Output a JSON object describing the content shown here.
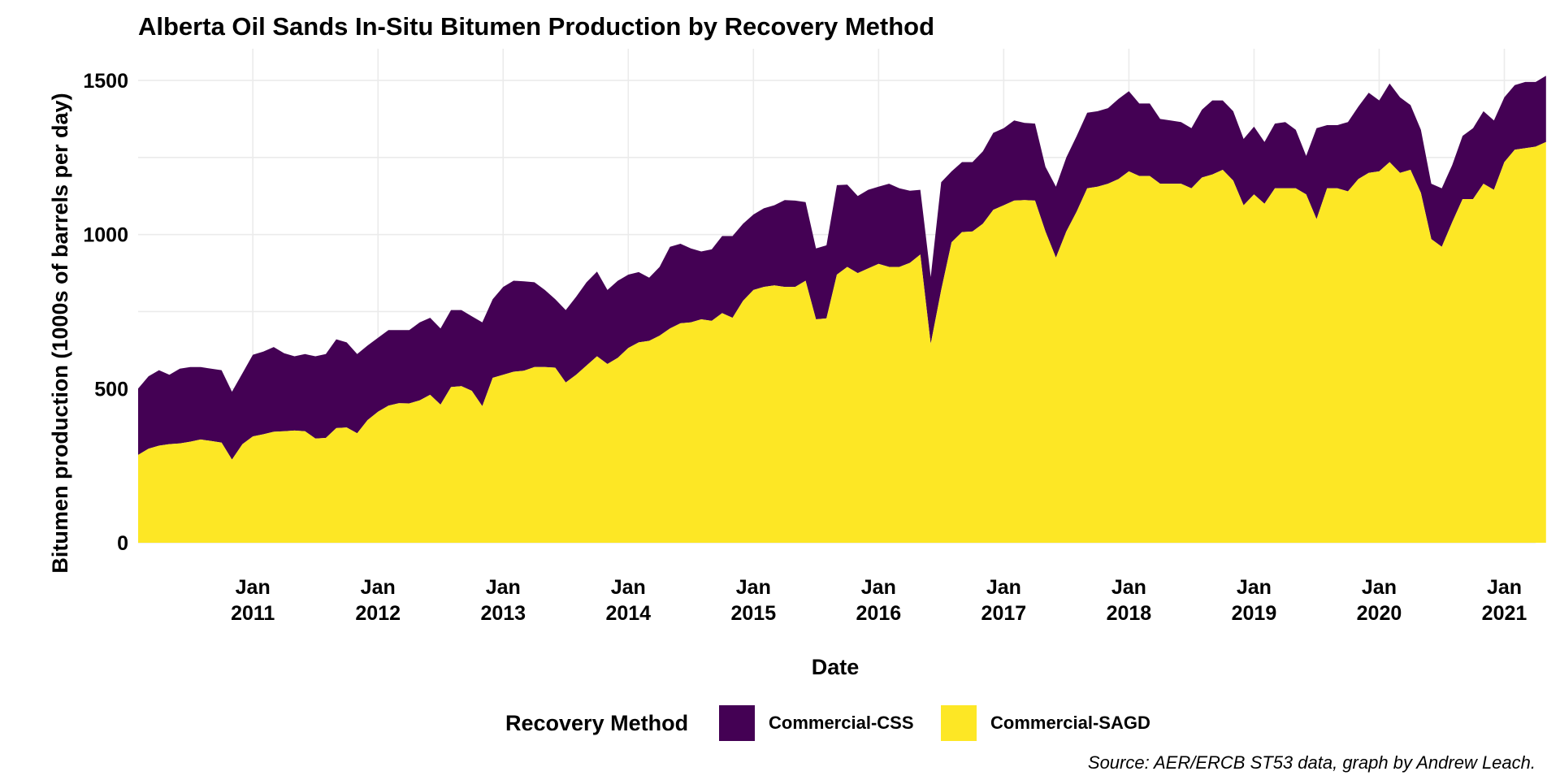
{
  "chart_data": {
    "type": "area",
    "stacked": true,
    "title": "Alberta Oil Sands In-Situ Bitumen Production by Recovery Method",
    "xlabel": "Date",
    "ylabel": "Bitumen production (1000s of barrels per day)",
    "caption": "Source: AER/ERCB ST53 data, graph by Andrew Leach.",
    "legend_title": "Recovery Method",
    "legend_position": "bottom",
    "grid": true,
    "ylim": [
      0,
      1550
    ],
    "xlim": [
      "2010-02",
      "2021-04"
    ],
    "y_ticks": [
      "0",
      "500",
      "1000",
      "1500"
    ],
    "x_ticks": [
      {
        "month": "Jan",
        "year": "2011",
        "date": "2011-01"
      },
      {
        "month": "Jan",
        "year": "2012",
        "date": "2012-01"
      },
      {
        "month": "Jan",
        "year": "2013",
        "date": "2013-01"
      },
      {
        "month": "Jan",
        "year": "2014",
        "date": "2014-01"
      },
      {
        "month": "Jan",
        "year": "2015",
        "date": "2015-01"
      },
      {
        "month": "Jan",
        "year": "2016",
        "date": "2016-01"
      },
      {
        "month": "Jan",
        "year": "2017",
        "date": "2017-01"
      },
      {
        "month": "Jan",
        "year": "2018",
        "date": "2018-01"
      },
      {
        "month": "Jan",
        "year": "2019",
        "date": "2019-01"
      },
      {
        "month": "Jan",
        "year": "2020",
        "date": "2020-01"
      },
      {
        "month": "Jan",
        "year": "2021",
        "date": "2021-01"
      }
    ],
    "series": [
      {
        "name": "Commercial-SAGD",
        "color": "#fde725",
        "points": [
          [
            "2010-02",
            285
          ],
          [
            "2010-03",
            305
          ],
          [
            "2010-04",
            315
          ],
          [
            "2010-05",
            320
          ],
          [
            "2010-06",
            322
          ],
          [
            "2010-07",
            328
          ],
          [
            "2010-08",
            335
          ],
          [
            "2010-09",
            330
          ],
          [
            "2010-10",
            325
          ],
          [
            "2010-11",
            270
          ],
          [
            "2010-12",
            320
          ],
          [
            "2011-01",
            345
          ],
          [
            "2011-02",
            352
          ],
          [
            "2011-03",
            360
          ],
          [
            "2011-04",
            362
          ],
          [
            "2011-05",
            364
          ],
          [
            "2011-06",
            362
          ],
          [
            "2011-07",
            338
          ],
          [
            "2011-08",
            340
          ],
          [
            "2011-09",
            372
          ],
          [
            "2011-10",
            374
          ],
          [
            "2011-11",
            355
          ],
          [
            "2011-12",
            398
          ],
          [
            "2012-01",
            425
          ],
          [
            "2012-02",
            445
          ],
          [
            "2012-03",
            453
          ],
          [
            "2012-04",
            452
          ],
          [
            "2012-05",
            462
          ],
          [
            "2012-06",
            480
          ],
          [
            "2012-07",
            448
          ],
          [
            "2012-08",
            505
          ],
          [
            "2012-09",
            508
          ],
          [
            "2012-10",
            493
          ],
          [
            "2012-11",
            443
          ],
          [
            "2012-12",
            535
          ],
          [
            "2013-01",
            545
          ],
          [
            "2013-02",
            555
          ],
          [
            "2013-03",
            558
          ],
          [
            "2013-04",
            570
          ],
          [
            "2013-05",
            570
          ],
          [
            "2013-06",
            568
          ],
          [
            "2013-07",
            520
          ],
          [
            "2013-08",
            545
          ],
          [
            "2013-09",
            575
          ],
          [
            "2013-10",
            605
          ],
          [
            "2013-11",
            580
          ],
          [
            "2013-12",
            600
          ],
          [
            "2014-01",
            632
          ],
          [
            "2014-02",
            650
          ],
          [
            "2014-03",
            655
          ],
          [
            "2014-04",
            672
          ],
          [
            "2014-05",
            695
          ],
          [
            "2014-06",
            712
          ],
          [
            "2014-07",
            715
          ],
          [
            "2014-08",
            725
          ],
          [
            "2014-09",
            720
          ],
          [
            "2014-10",
            745
          ],
          [
            "2014-11",
            730
          ],
          [
            "2014-12",
            785
          ],
          [
            "2015-01",
            820
          ],
          [
            "2015-02",
            830
          ],
          [
            "2015-03",
            835
          ],
          [
            "2015-04",
            830
          ],
          [
            "2015-05",
            830
          ],
          [
            "2015-06",
            850
          ],
          [
            "2015-07",
            725
          ],
          [
            "2015-08",
            728
          ],
          [
            "2015-09",
            870
          ],
          [
            "2015-10",
            895
          ],
          [
            "2015-11",
            875
          ],
          [
            "2015-12",
            890
          ],
          [
            "2016-01",
            905
          ],
          [
            "2016-02",
            895
          ],
          [
            "2016-03",
            895
          ],
          [
            "2016-04",
            908
          ],
          [
            "2016-05",
            935
          ],
          [
            "2016-06",
            645
          ],
          [
            "2016-07",
            820
          ],
          [
            "2016-08",
            975
          ],
          [
            "2016-09",
            1008
          ],
          [
            "2016-10",
            1010
          ],
          [
            "2016-11",
            1035
          ],
          [
            "2016-12",
            1080
          ],
          [
            "2017-01",
            1095
          ],
          [
            "2017-02",
            1110
          ],
          [
            "2017-03",
            1112
          ],
          [
            "2017-04",
            1110
          ],
          [
            "2017-05",
            1010
          ],
          [
            "2017-06",
            925
          ],
          [
            "2017-07",
            1010
          ],
          [
            "2017-08",
            1075
          ],
          [
            "2017-09",
            1150
          ],
          [
            "2017-10",
            1155
          ],
          [
            "2017-11",
            1165
          ],
          [
            "2017-12",
            1180
          ],
          [
            "2018-01",
            1205
          ],
          [
            "2018-02",
            1190
          ],
          [
            "2018-03",
            1190
          ],
          [
            "2018-04",
            1165
          ],
          [
            "2018-05",
            1165
          ],
          [
            "2018-06",
            1165
          ],
          [
            "2018-07",
            1150
          ],
          [
            "2018-08",
            1185
          ],
          [
            "2018-09",
            1195
          ],
          [
            "2018-10",
            1210
          ],
          [
            "2018-11",
            1175
          ],
          [
            "2018-12",
            1095
          ],
          [
            "2019-01",
            1130
          ],
          [
            "2019-02",
            1100
          ],
          [
            "2019-03",
            1150
          ],
          [
            "2019-04",
            1150
          ],
          [
            "2019-05",
            1150
          ],
          [
            "2019-06",
            1130
          ],
          [
            "2019-07",
            1050
          ],
          [
            "2019-08",
            1150
          ],
          [
            "2019-09",
            1150
          ],
          [
            "2019-10",
            1140
          ],
          [
            "2019-11",
            1180
          ],
          [
            "2019-12",
            1200
          ],
          [
            "2020-01",
            1205
          ],
          [
            "2020-02",
            1235
          ],
          [
            "2020-03",
            1200
          ],
          [
            "2020-04",
            1210
          ],
          [
            "2020-05",
            1135
          ],
          [
            "2020-06",
            985
          ],
          [
            "2020-07",
            960
          ],
          [
            "2020-08",
            1040
          ],
          [
            "2020-09",
            1115
          ],
          [
            "2020-10",
            1115
          ],
          [
            "2020-11",
            1165
          ],
          [
            "2020-12",
            1145
          ],
          [
            "2021-01",
            1235
          ],
          [
            "2021-02",
            1275
          ],
          [
            "2021-03",
            1280
          ],
          [
            "2021-04",
            1285
          ],
          [
            "2021-05",
            1300
          ]
        ]
      },
      {
        "name": "Commercial-CSS",
        "color": "#440154",
        "points": [
          [
            "2010-02",
            500
          ],
          [
            "2010-03",
            540
          ],
          [
            "2010-04",
            560
          ],
          [
            "2010-05",
            545
          ],
          [
            "2010-06",
            565
          ],
          [
            "2010-07",
            570
          ],
          [
            "2010-08",
            570
          ],
          [
            "2010-09",
            565
          ],
          [
            "2010-10",
            560
          ],
          [
            "2010-11",
            490
          ],
          [
            "2010-12",
            550
          ],
          [
            "2011-01",
            610
          ],
          [
            "2011-02",
            620
          ],
          [
            "2011-03",
            635
          ],
          [
            "2011-04",
            615
          ],
          [
            "2011-05",
            605
          ],
          [
            "2011-06",
            612
          ],
          [
            "2011-07",
            605
          ],
          [
            "2011-08",
            612
          ],
          [
            "2011-09",
            660
          ],
          [
            "2011-10",
            650
          ],
          [
            "2011-11",
            612
          ],
          [
            "2011-12",
            640
          ],
          [
            "2012-01",
            665
          ],
          [
            "2012-02",
            690
          ],
          [
            "2012-03",
            690
          ],
          [
            "2012-04",
            690
          ],
          [
            "2012-05",
            715
          ],
          [
            "2012-06",
            730
          ],
          [
            "2012-07",
            695
          ],
          [
            "2012-08",
            755
          ],
          [
            "2012-09",
            755
          ],
          [
            "2012-10",
            735
          ],
          [
            "2012-11",
            715
          ],
          [
            "2012-12",
            790
          ],
          [
            "2013-01",
            830
          ],
          [
            "2013-02",
            850
          ],
          [
            "2013-03",
            848
          ],
          [
            "2013-04",
            845
          ],
          [
            "2013-05",
            820
          ],
          [
            "2013-06",
            790
          ],
          [
            "2013-07",
            755
          ],
          [
            "2013-08",
            798
          ],
          [
            "2013-09",
            845
          ],
          [
            "2013-10",
            880
          ],
          [
            "2013-11",
            820
          ],
          [
            "2013-12",
            850
          ],
          [
            "2014-01",
            870
          ],
          [
            "2014-02",
            878
          ],
          [
            "2014-03",
            860
          ],
          [
            "2014-04",
            895
          ],
          [
            "2014-05",
            960
          ],
          [
            "2014-06",
            970
          ],
          [
            "2014-07",
            955
          ],
          [
            "2014-08",
            945
          ],
          [
            "2014-09",
            952
          ],
          [
            "2014-10",
            995
          ],
          [
            "2014-11",
            995
          ],
          [
            "2014-12",
            1035
          ],
          [
            "2015-01",
            1065
          ],
          [
            "2015-02",
            1085
          ],
          [
            "2015-03",
            1095
          ],
          [
            "2015-04",
            1112
          ],
          [
            "2015-05",
            1110
          ],
          [
            "2015-06",
            1105
          ],
          [
            "2015-07",
            955
          ],
          [
            "2015-08",
            965
          ],
          [
            "2015-09",
            1160
          ],
          [
            "2015-10",
            1162
          ],
          [
            "2015-11",
            1125
          ],
          [
            "2015-12",
            1145
          ],
          [
            "2016-01",
            1155
          ],
          [
            "2016-02",
            1165
          ],
          [
            "2016-03",
            1150
          ],
          [
            "2016-04",
            1142
          ],
          [
            "2016-05",
            1145
          ],
          [
            "2016-06",
            862
          ],
          [
            "2016-07",
            1170
          ],
          [
            "2016-08",
            1205
          ],
          [
            "2016-09",
            1235
          ],
          [
            "2016-10",
            1235
          ],
          [
            "2016-11",
            1270
          ],
          [
            "2016-12",
            1330
          ],
          [
            "2017-01",
            1345
          ],
          [
            "2017-02",
            1370
          ],
          [
            "2017-03",
            1362
          ],
          [
            "2017-04",
            1360
          ],
          [
            "2017-05",
            1220
          ],
          [
            "2017-06",
            1155
          ],
          [
            "2017-07",
            1250
          ],
          [
            "2017-08",
            1320
          ],
          [
            "2017-09",
            1395
          ],
          [
            "2017-10",
            1400
          ],
          [
            "2017-11",
            1410
          ],
          [
            "2017-12",
            1440
          ],
          [
            "2018-01",
            1465
          ],
          [
            "2018-02",
            1425
          ],
          [
            "2018-03",
            1425
          ],
          [
            "2018-04",
            1375
          ],
          [
            "2018-05",
            1370
          ],
          [
            "2018-06",
            1365
          ],
          [
            "2018-07",
            1345
          ],
          [
            "2018-08",
            1405
          ],
          [
            "2018-09",
            1435
          ],
          [
            "2018-10",
            1435
          ],
          [
            "2018-11",
            1400
          ],
          [
            "2018-12",
            1310
          ],
          [
            "2019-01",
            1350
          ],
          [
            "2019-02",
            1300
          ],
          [
            "2019-03",
            1360
          ],
          [
            "2019-04",
            1365
          ],
          [
            "2019-05",
            1340
          ],
          [
            "2019-06",
            1255
          ],
          [
            "2019-07",
            1345
          ],
          [
            "2019-08",
            1355
          ],
          [
            "2019-09",
            1355
          ],
          [
            "2019-10",
            1365
          ],
          [
            "2019-11",
            1415
          ],
          [
            "2019-12",
            1460
          ],
          [
            "2020-01",
            1435
          ],
          [
            "2020-02",
            1490
          ],
          [
            "2020-03",
            1445
          ],
          [
            "2020-04",
            1420
          ],
          [
            "2020-05",
            1340
          ],
          [
            "2020-06",
            1165
          ],
          [
            "2020-07",
            1150
          ],
          [
            "2020-08",
            1225
          ],
          [
            "2020-09",
            1320
          ],
          [
            "2020-10",
            1345
          ],
          [
            "2020-11",
            1400
          ],
          [
            "2020-12",
            1370
          ],
          [
            "2021-01",
            1445
          ],
          [
            "2021-02",
            1485
          ],
          [
            "2021-03",
            1495
          ],
          [
            "2021-04",
            1495
          ],
          [
            "2021-05",
            1515
          ]
        ]
      }
    ]
  }
}
